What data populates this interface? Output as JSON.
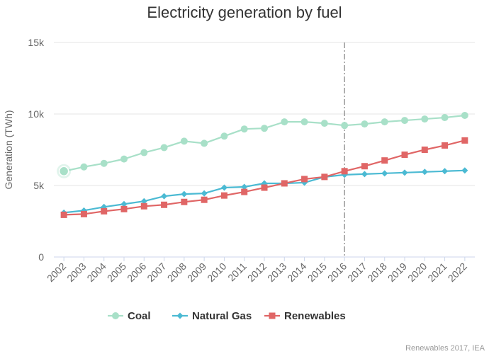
{
  "chart_data": {
    "type": "line",
    "title": "Electricity generation by fuel",
    "xlabel": "",
    "ylabel": "Generation (TWh)",
    "categories": [
      "2002",
      "2003",
      "2004",
      "2005",
      "2006",
      "2007",
      "2008",
      "2009",
      "2010",
      "2011",
      "2012",
      "2013",
      "2014",
      "2015",
      "2016",
      "2017",
      "2018",
      "2019",
      "2020",
      "2021",
      "2022"
    ],
    "ylim": [
      0,
      15000
    ],
    "yticks": [
      {
        "value": 0,
        "label": "0"
      },
      {
        "value": 5000,
        "label": "5k"
      },
      {
        "value": 10000,
        "label": "10k"
      },
      {
        "value": 15000,
        "label": "15k"
      }
    ],
    "grid": true,
    "legend_position": "bottom",
    "plot_line_category": "2016",
    "series": [
      {
        "name": "Coal",
        "color": "#a8e0c8",
        "marker": "circle",
        "values": [
          6000,
          6300,
          6550,
          6850,
          7300,
          7650,
          8100,
          7950,
          8450,
          8950,
          9000,
          9450,
          9450,
          9350,
          9200,
          9300,
          9450,
          9550,
          9650,
          9750,
          9900
        ]
      },
      {
        "name": "Natural Gas",
        "color": "#4bbad3",
        "marker": "diamond",
        "values": [
          3100,
          3250,
          3500,
          3700,
          3900,
          4250,
          4400,
          4450,
          4850,
          4900,
          5150,
          5150,
          5200,
          5600,
          5750,
          5800,
          5850,
          5900,
          5950,
          6000,
          6050
        ]
      },
      {
        "name": "Renewables",
        "color": "#e06666",
        "marker": "square",
        "values": [
          2950,
          3000,
          3200,
          3350,
          3550,
          3650,
          3850,
          4000,
          4300,
          4550,
          4850,
          5150,
          5450,
          5600,
          6000,
          6350,
          6750,
          7150,
          7500,
          7800,
          8150
        ]
      }
    ],
    "credit": "Renewables 2017, IEA"
  }
}
